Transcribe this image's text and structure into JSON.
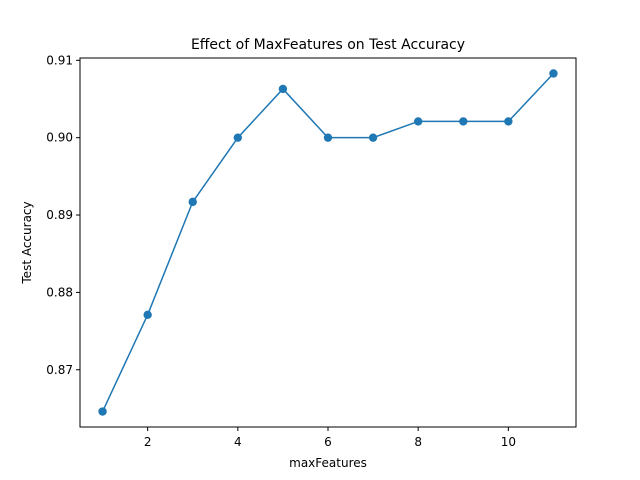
{
  "chart_data": {
    "type": "line",
    "title": "Effect of MaxFeatures on Test Accuracy",
    "xlabel": "maxFeatures",
    "ylabel": "Test Accuracy",
    "xlim": [
      0.5,
      11.5
    ],
    "ylim": [
      0.8626,
      0.9103
    ],
    "x_ticks": [
      2,
      4,
      6,
      8,
      10
    ],
    "x_tick_labels": [
      "2",
      "4",
      "6",
      "8",
      "10"
    ],
    "y_ticks": [
      0.87,
      0.88,
      0.89,
      0.9,
      0.91
    ],
    "y_tick_labels": [
      "0.87",
      "0.88",
      "0.89",
      "0.90",
      "0.91"
    ],
    "grid": false,
    "legend": "none",
    "series": [
      {
        "color": "#1f77b4",
        "marker": "circle",
        "x": [
          1,
          2,
          3,
          4,
          5,
          6,
          7,
          8,
          9,
          10,
          11
        ],
        "y": [
          0.8646,
          0.8771,
          0.8917,
          0.9,
          0.9063,
          0.9,
          0.9,
          0.9021,
          0.9021,
          0.9021,
          0.9083
        ]
      }
    ]
  }
}
